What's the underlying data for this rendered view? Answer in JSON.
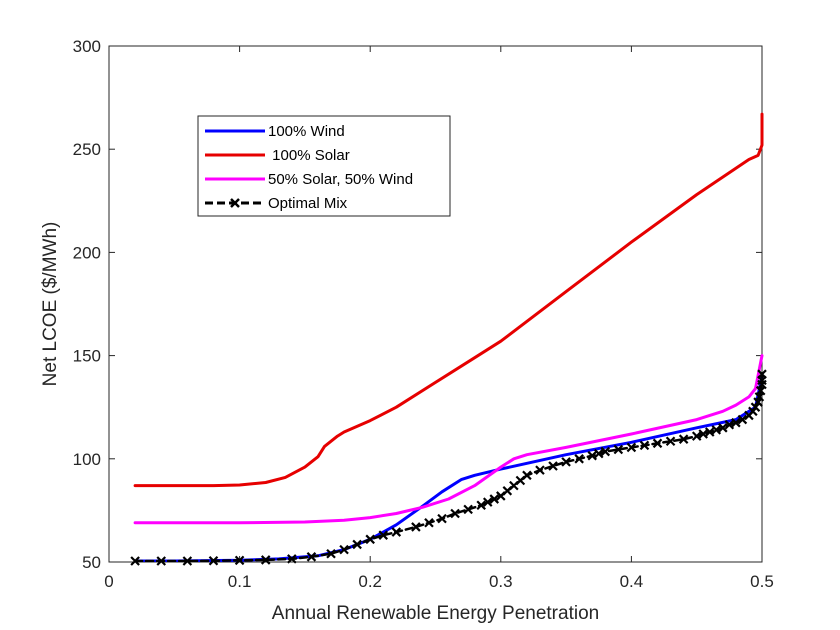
{
  "chart_data": {
    "type": "line",
    "xlabel": "Annual Renewable Energy Penetration",
    "ylabel": "Net LCOE ($/MWh)",
    "xlim": [
      0,
      0.5
    ],
    "ylim": [
      50,
      300
    ],
    "xticks": [
      0,
      0.1,
      0.2,
      0.3,
      0.4,
      0.5
    ],
    "xtick_labels": [
      "0",
      "0.1",
      "0.2",
      "0.3",
      "0.4",
      "0.5"
    ],
    "yticks": [
      50,
      100,
      150,
      200,
      250,
      300
    ],
    "ytick_labels": [
      "50",
      "100",
      "150",
      "200",
      "250",
      "300"
    ],
    "grid": false,
    "legend_position": "top-left",
    "series": [
      {
        "name": "100% Wind",
        "color": "#0000ff",
        "marker": "none",
        "x": [
          0.02,
          0.05,
          0.1,
          0.13,
          0.16,
          0.18,
          0.2,
          0.22,
          0.24,
          0.255,
          0.27,
          0.28,
          0.3,
          0.35,
          0.4,
          0.45,
          0.48,
          0.495,
          0.5
        ],
        "y": [
          50.5,
          50.5,
          50.8,
          51.5,
          53,
          56,
          61,
          68,
          77,
          84,
          90,
          92,
          95,
          102,
          108,
          115,
          119,
          125,
          140
        ]
      },
      {
        "name": " 100% Solar",
        "color": "#e60000",
        "marker": "none",
        "x": [
          0.02,
          0.05,
          0.08,
          0.1,
          0.12,
          0.135,
          0.15,
          0.16,
          0.165,
          0.175,
          0.18,
          0.2,
          0.22,
          0.25,
          0.28,
          0.3,
          0.35,
          0.4,
          0.45,
          0.49,
          0.497,
          0.5,
          0.5
        ],
        "y": [
          87,
          87,
          87,
          87.3,
          88.5,
          91,
          96,
          101,
          106,
          111,
          113,
          118.5,
          125,
          137,
          149,
          157,
          181,
          205,
          228,
          245,
          247,
          252,
          267
        ]
      },
      {
        "name": "50% Solar, 50% Wind",
        "color": "#ff00ff",
        "marker": "none",
        "x": [
          0.02,
          0.05,
          0.1,
          0.15,
          0.18,
          0.2,
          0.22,
          0.24,
          0.26,
          0.28,
          0.3,
          0.31,
          0.32,
          0.35,
          0.4,
          0.45,
          0.47,
          0.48,
          0.49,
          0.495,
          0.5
        ],
        "y": [
          69,
          69,
          69,
          69.4,
          70.2,
          71.5,
          73.5,
          76.5,
          80.5,
          87,
          96,
          100,
          102,
          105.5,
          112,
          119,
          123,
          126,
          130,
          134,
          150
        ]
      },
      {
        "name": "Optimal Mix",
        "color": "#000000",
        "marker": "x",
        "dashed": true,
        "x": [
          0.02,
          0.04,
          0.06,
          0.08,
          0.1,
          0.12,
          0.14,
          0.155,
          0.17,
          0.18,
          0.19,
          0.2,
          0.21,
          0.22,
          0.235,
          0.245,
          0.255,
          0.265,
          0.275,
          0.285,
          0.29,
          0.295,
          0.3,
          0.305,
          0.31,
          0.315,
          0.32,
          0.33,
          0.34,
          0.35,
          0.36,
          0.37,
          0.375,
          0.38,
          0.39,
          0.4,
          0.41,
          0.42,
          0.43,
          0.44,
          0.45,
          0.455,
          0.46,
          0.465,
          0.47,
          0.475,
          0.48,
          0.485,
          0.49,
          0.493,
          0.495,
          0.497,
          0.498,
          0.499,
          0.5,
          0.5,
          0.5
        ],
        "y": [
          50.5,
          50.5,
          50.5,
          50.6,
          50.8,
          51,
          51.5,
          52.5,
          54,
          56,
          58.5,
          61,
          63,
          64.5,
          67,
          69,
          71,
          73.5,
          75.5,
          77.5,
          79,
          80.5,
          82,
          84.5,
          87,
          89.5,
          92,
          94.5,
          96.5,
          98.5,
          100,
          101.5,
          102.5,
          103.5,
          104.5,
          105.5,
          106.5,
          107.5,
          108.5,
          109.5,
          111,
          112,
          113,
          114,
          115,
          116.5,
          117.5,
          119,
          121,
          123,
          125,
          127.5,
          130,
          133,
          136,
          138,
          141
        ]
      }
    ]
  }
}
